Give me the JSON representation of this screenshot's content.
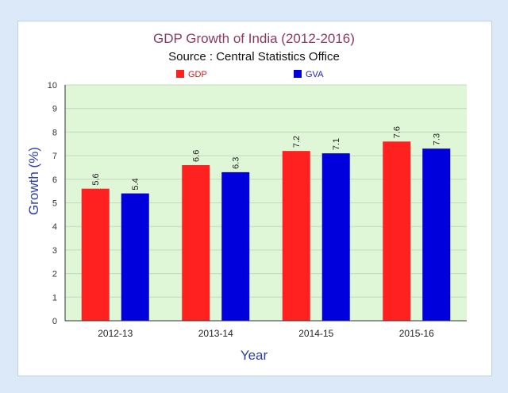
{
  "colors": {
    "page_background": "#dbe9f8",
    "plot_background": "#dff7d6",
    "title": "#8b3a62",
    "axis_title": "#2d3ea8",
    "gdp": "#ff2020",
    "gva": "#0000dd"
  },
  "chart_data": {
    "type": "bar",
    "title": "GDP Growth of India (2012-2016)",
    "subtitle": "Source : Central Statistics Office",
    "xlabel": "Year",
    "ylabel": "Growth (%)",
    "categories": [
      "2012-13",
      "2013-14",
      "2014-15",
      "2015-16"
    ],
    "series": [
      {
        "name": "GDP",
        "values": [
          5.6,
          6.6,
          7.2,
          7.6
        ],
        "color": "#ff2020",
        "labels": [
          "5.6",
          "6.6",
          "7.2",
          "7.6"
        ]
      },
      {
        "name": "GVA",
        "values": [
          5.4,
          6.3,
          7.1,
          7.3
        ],
        "color": "#0000dd",
        "labels": [
          "5.4",
          "6.3",
          "7.1",
          "7.3"
        ]
      }
    ],
    "ylim": [
      0,
      10
    ],
    "yticks": [
      "0",
      "1",
      "2",
      "3",
      "4",
      "5",
      "6",
      "7",
      "8",
      "9",
      "10"
    ],
    "grid": true,
    "legend_position": "top"
  }
}
